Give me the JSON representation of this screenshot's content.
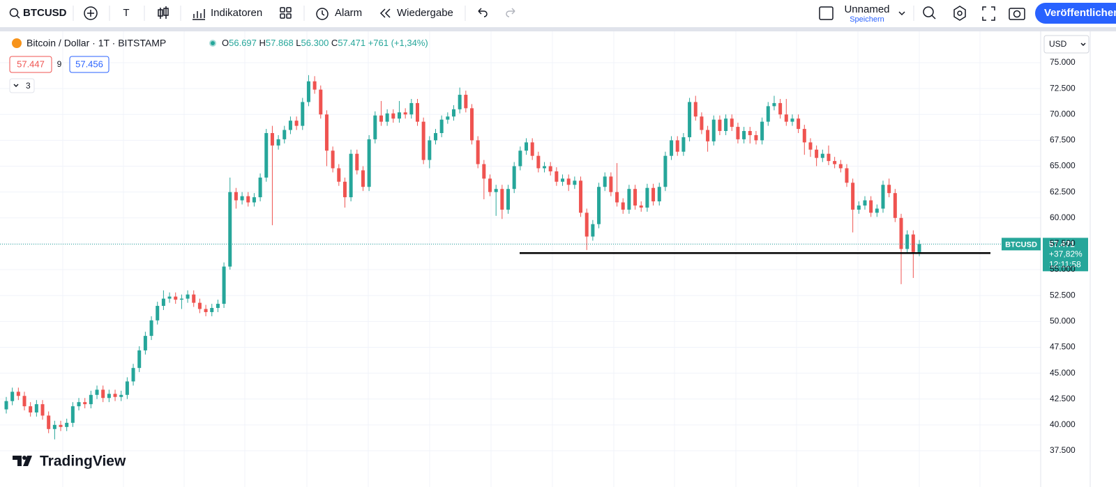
{
  "toolbar": {
    "symbol": "BTCUSD",
    "text_tool": "T",
    "indicators": "Indikatoren",
    "alert": "Alarm",
    "replay": "Wiedergabe",
    "layout_name": "Unnamed",
    "save": "Speichern",
    "publish": "Veröffentlichen"
  },
  "legend": {
    "title": "Bitcoin / Dollar · 1T · BITSTAMP",
    "ohlc": [
      {
        "key": "O",
        "value": "56.697"
      },
      {
        "key": "H",
        "value": "57.868"
      },
      {
        "key": "L",
        "value": "56.300"
      },
      {
        "key": "C",
        "value": "57.471"
      }
    ],
    "change": "+761 (+1,34%)",
    "bid": "57.447",
    "spread": "9",
    "ask": "57.456",
    "collapsed": "3"
  },
  "price_label": {
    "symbol": "BTCUSD",
    "price": "57.471",
    "change": "+37,82%",
    "countdown": "12:11:58"
  },
  "axis_unit": "USD",
  "brand": "TradingView",
  "chart_data": {
    "type": "candlestick",
    "up_color": "#26a69a",
    "down_color": "#ef5350",
    "ylim": [
      34.94,
      78.03
    ],
    "yticks": [
      {
        "value": 37.5,
        "label": "37.500"
      },
      {
        "value": 40,
        "label": "40.000"
      },
      {
        "value": 42.5,
        "label": "42.500"
      },
      {
        "value": 45,
        "label": "45.000"
      },
      {
        "value": 47.5,
        "label": "47.500"
      },
      {
        "value": 50,
        "label": "50.000"
      },
      {
        "value": 52.5,
        "label": "52.500"
      },
      {
        "value": 55,
        "label": "55.000"
      },
      {
        "value": 57.5,
        "label": "57.500"
      },
      {
        "value": 60,
        "label": "60.000"
      },
      {
        "value": 62.5,
        "label": "62.500"
      },
      {
        "value": 65,
        "label": "65.000"
      },
      {
        "value": 67.5,
        "label": "67.500"
      },
      {
        "value": 70,
        "label": "70.000"
      },
      {
        "value": 72.5,
        "label": "72.500"
      },
      {
        "value": 75,
        "label": "75.000"
      }
    ],
    "grid": true,
    "hline": 56.6,
    "candles": {
      "open": [
        41.5,
        42.3,
        43.2,
        42.8,
        41.8,
        41.2,
        42.0,
        40.9,
        39.6,
        40.0,
        39.8,
        40.2,
        41.8,
        42.2,
        42.0,
        42.9,
        43.4,
        42.6,
        43.0,
        42.7,
        42.9,
        44.2,
        45.5,
        47.2,
        48.6,
        50.1,
        51.5,
        52.2,
        52.4,
        52.1,
        52.2,
        52.6,
        51.8,
        51.2,
        50.9,
        51.3,
        51.7,
        55.3,
        62.5,
        61.7,
        62.1,
        61.5,
        62.0,
        63.9,
        68.2,
        67.0,
        67.6,
        68.5,
        69.4,
        68.9,
        71.2,
        73.2,
        72.4,
        70.0,
        66.5,
        64.8,
        63.5,
        62.0,
        66.2,
        64.6,
        63.0,
        67.6,
        69.9,
        69.3,
        70.1,
        69.6,
        70.2,
        70.0,
        71.1,
        69.3,
        65.6,
        67.5,
        68.2,
        69.5,
        69.8,
        70.5,
        71.9,
        70.6,
        67.5,
        65.2,
        63.8,
        62.5,
        62.8,
        60.8,
        62.8,
        65.0,
        66.5,
        67.3,
        66.0,
        64.8,
        65.0,
        64.5,
        63.5,
        63.8,
        63.2,
        63.6,
        60.5,
        58.2,
        59.4,
        63.0,
        64.0,
        62.5,
        61.5,
        60.8,
        62.8,
        61.2,
        61.0,
        62.9,
        61.6,
        63.0,
        66.0,
        67.5,
        66.4,
        67.8,
        71.2,
        69.8,
        68.5,
        67.4,
        69.5,
        68.4,
        69.6,
        68.8,
        67.6,
        68.4,
        68.0,
        67.5,
        69.3,
        70.8,
        71.1,
        70.0,
        69.3,
        69.6,
        68.6,
        67.3,
        66.6,
        65.8,
        66.2,
        65.5,
        65.2,
        64.8,
        63.4,
        60.8,
        61.2,
        61.7,
        60.5,
        60.9,
        63.2,
        62.4,
        60.0,
        57.0,
        58.4,
        56.697
      ],
      "high": [
        42.7,
        43.6,
        43.6,
        43.2,
        42.2,
        42.4,
        42.4,
        41.3,
        40.4,
        40.4,
        40.6,
        42.2,
        42.6,
        42.6,
        43.3,
        43.8,
        43.8,
        43.4,
        43.4,
        43.3,
        44.6,
        45.9,
        47.6,
        49.0,
        50.5,
        51.9,
        53.0,
        52.8,
        52.8,
        52.6,
        53.0,
        53.0,
        52.2,
        51.6,
        51.7,
        52.1,
        55.7,
        63.9,
        62.9,
        62.5,
        62.5,
        62.4,
        64.3,
        68.6,
        68.9,
        68.0,
        68.9,
        69.8,
        69.8,
        71.6,
        73.8,
        73.7,
        72.8,
        70.4,
        66.9,
        65.2,
        63.9,
        66.6,
        66.6,
        65.0,
        68.0,
        70.3,
        71.3,
        70.5,
        70.5,
        71.3,
        70.6,
        71.5,
        71.5,
        69.7,
        67.9,
        68.6,
        69.9,
        70.2,
        70.9,
        72.6,
        72.3,
        71.0,
        67.9,
        65.6,
        64.2,
        63.2,
        63.2,
        63.2,
        65.4,
        66.9,
        67.7,
        67.7,
        66.4,
        65.4,
        65.4,
        64.9,
        64.2,
        64.2,
        64.0,
        64.0,
        60.9,
        59.8,
        63.4,
        64.4,
        64.4,
        65.3,
        61.9,
        63.2,
        63.2,
        61.6,
        63.3,
        63.3,
        63.4,
        66.4,
        67.9,
        67.9,
        68.2,
        71.6,
        71.8,
        70.2,
        68.9,
        69.9,
        69.9,
        70.0,
        70.0,
        69.2,
        68.8,
        68.8,
        68.4,
        69.7,
        71.2,
        71.8,
        71.5,
        71.5,
        70.0,
        70.0,
        69.0,
        67.7,
        67.0,
        66.6,
        67.0,
        65.9,
        65.6,
        65.2,
        63.8,
        61.6,
        62.1,
        62.1,
        61.3,
        63.6,
        63.8,
        62.8,
        60.4,
        58.8,
        58.8,
        57.868
      ],
      "low": [
        41.1,
        41.9,
        42.4,
        41.4,
        40.8,
        40.8,
        40.5,
        39.2,
        38.6,
        39.4,
        39.4,
        39.8,
        41.4,
        41.6,
        41.6,
        42.5,
        42.2,
        42.2,
        42.3,
        42.3,
        42.5,
        43.8,
        45.1,
        46.8,
        48.2,
        49.7,
        51.1,
        51.8,
        51.7,
        51.2,
        51.8,
        51.4,
        50.8,
        50.5,
        50.5,
        50.9,
        51.3,
        55.0,
        60.9,
        61.3,
        61.1,
        61.1,
        61.6,
        63.5,
        59.3,
        66.6,
        67.2,
        68.1,
        68.5,
        68.5,
        70.8,
        72.0,
        69.6,
        65.0,
        64.4,
        63.1,
        61.0,
        61.6,
        64.2,
        62.6,
        62.6,
        67.2,
        68.9,
        68.9,
        69.2,
        69.2,
        69.6,
        69.6,
        68.9,
        65.2,
        64.8,
        67.1,
        67.8,
        69.1,
        69.4,
        70.1,
        70.2,
        67.1,
        64.8,
        61.8,
        62.1,
        60.2,
        59.9,
        60.4,
        62.4,
        64.6,
        66.1,
        65.6,
        64.4,
        64.4,
        64.1,
        63.1,
        63.1,
        62.6,
        62.8,
        60.1,
        56.9,
        57.8,
        59.0,
        62.6,
        62.1,
        61.1,
        60.4,
        60.4,
        60.8,
        60.6,
        60.6,
        61.2,
        61.2,
        62.6,
        65.6,
        66.0,
        66.0,
        67.4,
        69.4,
        68.1,
        66.4,
        67.0,
        68.0,
        68.0,
        68.4,
        67.2,
        67.2,
        67.2,
        67.1,
        67.1,
        68.9,
        70.4,
        69.6,
        68.9,
        68.9,
        68.2,
        66.1,
        65.9,
        65.0,
        65.4,
        65.1,
        64.8,
        64.4,
        63.0,
        58.6,
        60.4,
        60.8,
        60.1,
        60.1,
        60.5,
        62.0,
        59.6,
        53.6,
        56.6,
        54.2,
        56.3
      ],
      "close": [
        42.3,
        43.2,
        42.8,
        41.8,
        41.2,
        42.0,
        40.9,
        39.6,
        40.0,
        39.8,
        40.2,
        41.8,
        42.2,
        42.0,
        42.9,
        43.4,
        42.6,
        43.0,
        42.7,
        42.9,
        44.2,
        45.5,
        47.2,
        48.6,
        50.1,
        51.5,
        52.2,
        52.4,
        52.1,
        52.2,
        52.6,
        51.8,
        51.2,
        50.9,
        51.3,
        51.7,
        55.3,
        62.5,
        61.7,
        62.1,
        61.5,
        62.0,
        63.9,
        68.2,
        67.0,
        67.6,
        68.5,
        69.4,
        68.9,
        71.2,
        73.2,
        72.4,
        70.0,
        66.5,
        64.8,
        63.5,
        62.0,
        66.2,
        64.6,
        63.0,
        67.6,
        69.9,
        69.3,
        70.1,
        69.6,
        70.2,
        70.0,
        71.1,
        69.3,
        65.6,
        67.5,
        68.2,
        69.5,
        69.8,
        70.5,
        71.9,
        70.6,
        67.5,
        65.2,
        63.8,
        62.5,
        62.8,
        60.8,
        62.8,
        65.0,
        66.5,
        67.3,
        66.0,
        64.8,
        65.0,
        64.5,
        63.5,
        63.8,
        63.2,
        63.6,
        60.5,
        58.2,
        59.4,
        63.0,
        64.0,
        62.5,
        61.5,
        60.8,
        62.8,
        61.2,
        61.0,
        62.9,
        61.6,
        63.0,
        66.0,
        67.5,
        66.4,
        67.8,
        71.2,
        69.8,
        68.5,
        67.4,
        69.5,
        68.4,
        69.6,
        68.8,
        67.6,
        68.4,
        68.0,
        67.5,
        69.3,
        70.8,
        71.1,
        70.0,
        69.3,
        69.6,
        68.6,
        67.3,
        66.6,
        65.8,
        66.2,
        65.5,
        65.2,
        64.8,
        63.4,
        60.8,
        61.2,
        61.7,
        60.5,
        60.9,
        63.2,
        62.4,
        60.0,
        57.0,
        58.4,
        56.7,
        57.471
      ]
    }
  }
}
